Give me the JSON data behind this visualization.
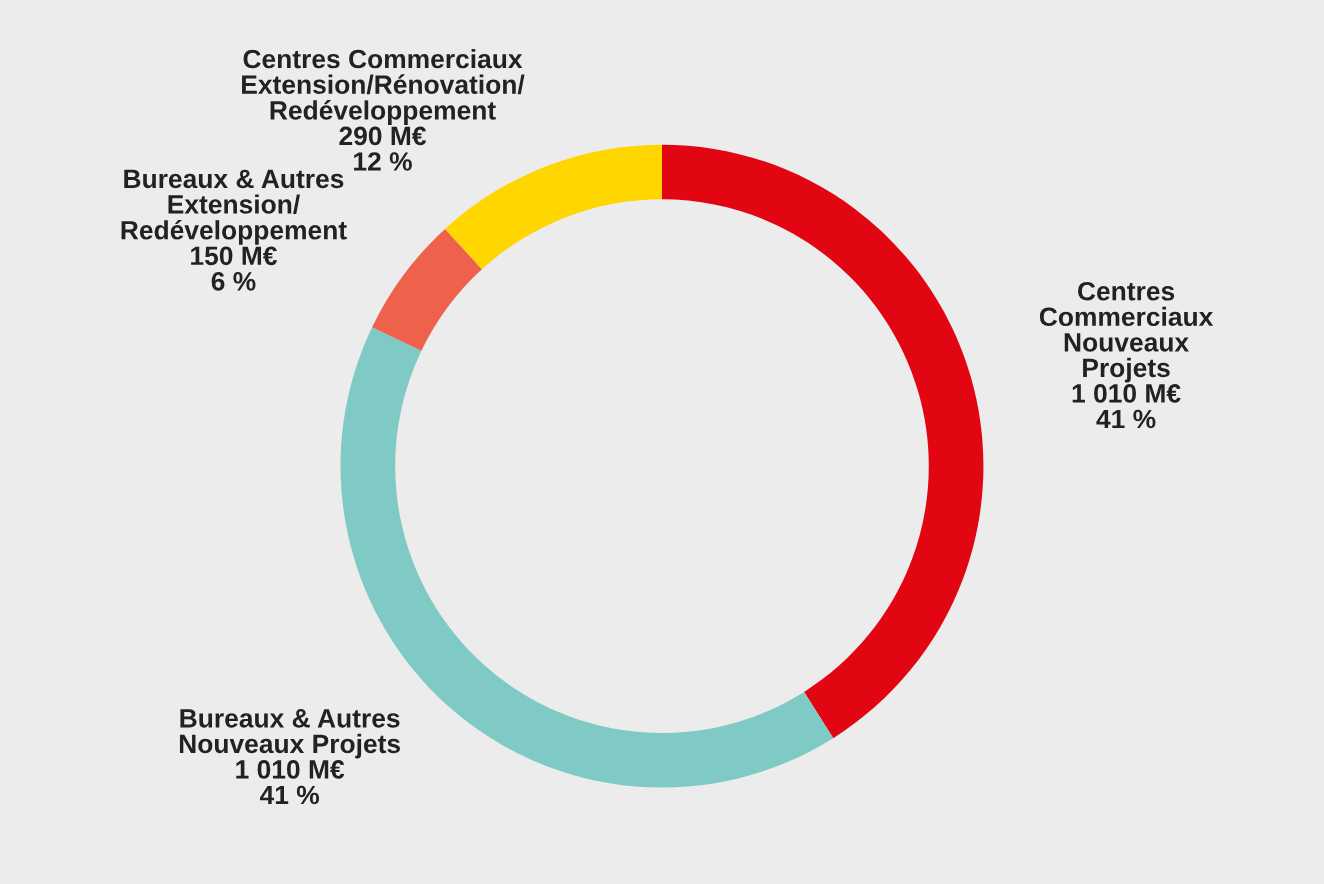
{
  "chart_data": {
    "type": "donut",
    "categories": [
      "Centres\nCommerciaux\nNouveaux\nProjets",
      "Bureaux & Autres\nNouveaux Projets",
      "Bureaux & Autres\nExtension/\nRedéveloppement",
      "Centres Commerciaux\nExtension/Rénovation/\nRedéveloppement"
    ],
    "values": [
      1010,
      1010,
      150,
      290
    ],
    "value_labels": [
      "1 010 M€\n41 %",
      "1 010 M€\n41 %",
      "150 M€\n6 %",
      "290 M€\n12 %"
    ],
    "colors": [
      "#e20613",
      "#7fcac5",
      "#ee614a",
      "#ffd600"
    ],
    "legend": false
  }
}
